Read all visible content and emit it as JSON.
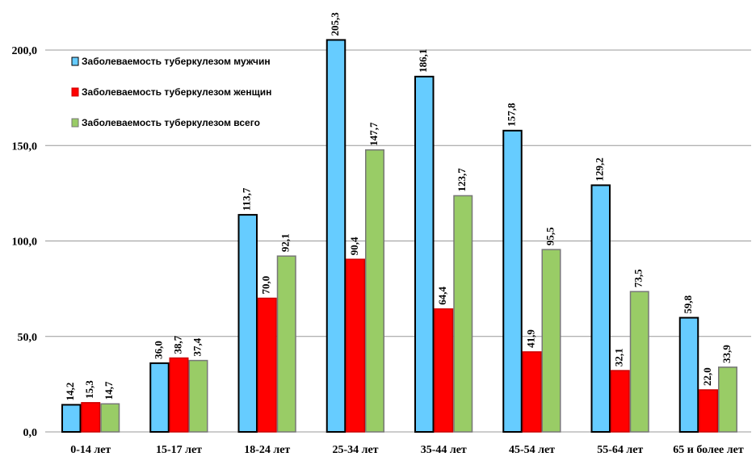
{
  "chart_data": {
    "type": "bar",
    "title": "",
    "xlabel": "",
    "ylabel": "",
    "ylim": [
      0,
      200
    ],
    "yticks": [
      "0,0",
      "50,0",
      "100,0",
      "150,0",
      "200,0"
    ],
    "grid": true,
    "legend_position": "top-left",
    "categories": [
      "0-14 лет",
      "15-17 лет",
      "18-24 лет",
      "25-34 лет",
      "35-44 лет",
      "45-54 лет",
      "55-64 лет",
      "65 и более лет"
    ],
    "series": [
      {
        "name": "Заболеваемость туберкулезом мужчин",
        "color": "#66ccff",
        "border": "#000000",
        "values": [
          14.2,
          36.0,
          113.7,
          205.3,
          186.1,
          157.8,
          129.2,
          59.8
        ],
        "labels": [
          "14,2",
          "36,0",
          "113,7",
          "205,3",
          "186,1",
          "157,8",
          "129,2",
          "59,8"
        ]
      },
      {
        "name": "Заболеваемость туберкулезом женщин",
        "color": "#ff0000",
        "border": "#cc0000",
        "values": [
          15.3,
          38.7,
          70.0,
          90.4,
          64.4,
          41.9,
          32.1,
          22.0
        ],
        "labels": [
          "15,3",
          "38,7",
          "70,0",
          "90,4",
          "64,4",
          "41,9",
          "32,1",
          "22,0"
        ]
      },
      {
        "name": "Заболеваемость туберкулезом всего",
        "color": "#99cc66",
        "border": "#777777",
        "values": [
          14.7,
          37.4,
          92.1,
          147.7,
          123.7,
          95.5,
          73.5,
          33.9
        ],
        "labels": [
          "14,7",
          "37,4",
          "92,1",
          "147,7",
          "123,7",
          "95,5",
          "73,5",
          "33,9"
        ]
      }
    ]
  }
}
